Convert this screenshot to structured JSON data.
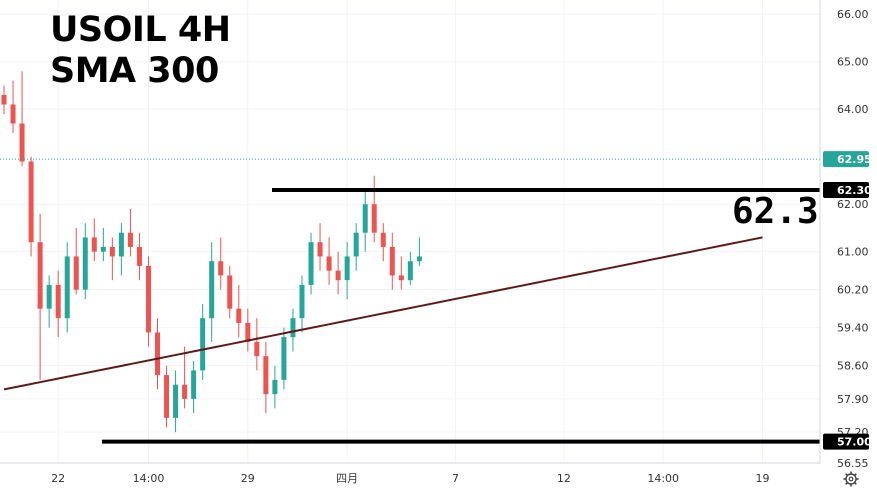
{
  "title": "USOIL 4H",
  "subtitle": "SMA 300",
  "annotation": "62.3",
  "settings_icon": "gear-icon",
  "colors": {
    "up": "#26a69a",
    "down": "#ef5350",
    "sma": "#5d1a1a",
    "level_line": "#000000",
    "current_tag": "#26a69a",
    "grid": "#f0f3fa"
  },
  "chart_data": {
    "type": "candlestick",
    "ylim": [
      56.55,
      66.3
    ],
    "y_ticks": [
      "66.00",
      "65.00",
      "64.00",
      "62.00",
      "61.00",
      "60.20",
      "59.40",
      "58.60",
      "57.90",
      "57.20",
      "56.55"
    ],
    "x_ticks": [
      {
        "label": "22",
        "index": 6
      },
      {
        "label": "14:00",
        "index": 16
      },
      {
        "label": "29",
        "index": 27
      },
      {
        "label": "四月",
        "index": 38
      },
      {
        "label": "7",
        "index": 50
      },
      {
        "label": "12",
        "index": 62
      },
      {
        "label": "14:00",
        "index": 73
      },
      {
        "label": "19",
        "index": 84
      }
    ],
    "levels": [
      {
        "value": 62.3,
        "label": "62.30"
      },
      {
        "value": 57.0,
        "label": "57.00"
      }
    ],
    "current_price": {
      "value": 62.95,
      "label": "62.95"
    },
    "sma_300": {
      "start_index": 0,
      "start_value": 58.1,
      "end_index": 84,
      "end_value": 61.3
    },
    "candles": [
      [
        64.3,
        64.5,
        63.9,
        64.1
      ],
      [
        64.1,
        64.6,
        63.5,
        63.7
      ],
      [
        63.7,
        64.8,
        62.8,
        62.9
      ],
      [
        62.9,
        63.0,
        60.9,
        61.2
      ],
      [
        61.2,
        61.8,
        58.3,
        59.8
      ],
      [
        59.8,
        60.5,
        59.4,
        60.3
      ],
      [
        60.3,
        60.6,
        59.2,
        59.6
      ],
      [
        59.6,
        61.2,
        59.3,
        60.9
      ],
      [
        60.9,
        61.5,
        60.1,
        60.2
      ],
      [
        60.2,
        61.6,
        60.0,
        61.3
      ],
      [
        61.3,
        61.7,
        60.8,
        61.0
      ],
      [
        61.0,
        61.5,
        60.8,
        61.1
      ],
      [
        61.1,
        61.3,
        60.4,
        60.9
      ],
      [
        60.9,
        61.6,
        60.5,
        61.4
      ],
      [
        61.4,
        61.9,
        60.9,
        61.1
      ],
      [
        61.1,
        61.4,
        60.4,
        60.7
      ],
      [
        60.7,
        60.9,
        59.0,
        59.3
      ],
      [
        59.3,
        59.6,
        58.1,
        58.4
      ],
      [
        58.4,
        58.6,
        57.3,
        57.5
      ],
      [
        57.5,
        58.5,
        57.2,
        58.2
      ],
      [
        58.2,
        59.0,
        57.7,
        57.9
      ],
      [
        57.9,
        58.7,
        57.6,
        58.5
      ],
      [
        58.5,
        59.9,
        58.3,
        59.6
      ],
      [
        59.6,
        61.2,
        59.1,
        60.8
      ],
      [
        60.8,
        61.3,
        60.2,
        60.5
      ],
      [
        60.5,
        60.7,
        59.6,
        59.8
      ],
      [
        59.8,
        60.3,
        59.2,
        59.5
      ],
      [
        59.5,
        59.8,
        58.9,
        59.1
      ],
      [
        59.1,
        59.6,
        58.5,
        58.8
      ],
      [
        58.8,
        59.1,
        57.6,
        58.0
      ],
      [
        58.0,
        58.6,
        57.7,
        58.3
      ],
      [
        58.3,
        59.4,
        58.1,
        59.2
      ],
      [
        59.2,
        59.8,
        58.9,
        59.6
      ],
      [
        59.6,
        60.5,
        59.3,
        60.3
      ],
      [
        60.3,
        61.4,
        60.1,
        61.2
      ],
      [
        61.2,
        61.6,
        60.6,
        60.9
      ],
      [
        60.9,
        61.3,
        60.3,
        60.6
      ],
      [
        60.6,
        61.0,
        60.1,
        60.4
      ],
      [
        60.4,
        61.2,
        60.0,
        60.9
      ],
      [
        60.9,
        61.6,
        60.6,
        61.4
      ],
      [
        61.4,
        62.3,
        61.0,
        62.0
      ],
      [
        62.0,
        62.6,
        61.2,
        61.4
      ],
      [
        61.4,
        61.6,
        60.8,
        61.1
      ],
      [
        61.1,
        61.4,
        60.2,
        60.5
      ],
      [
        60.5,
        60.9,
        60.2,
        60.4
      ],
      [
        60.4,
        61.0,
        60.3,
        60.8
      ],
      [
        60.8,
        61.3,
        60.7,
        60.9
      ]
    ]
  }
}
